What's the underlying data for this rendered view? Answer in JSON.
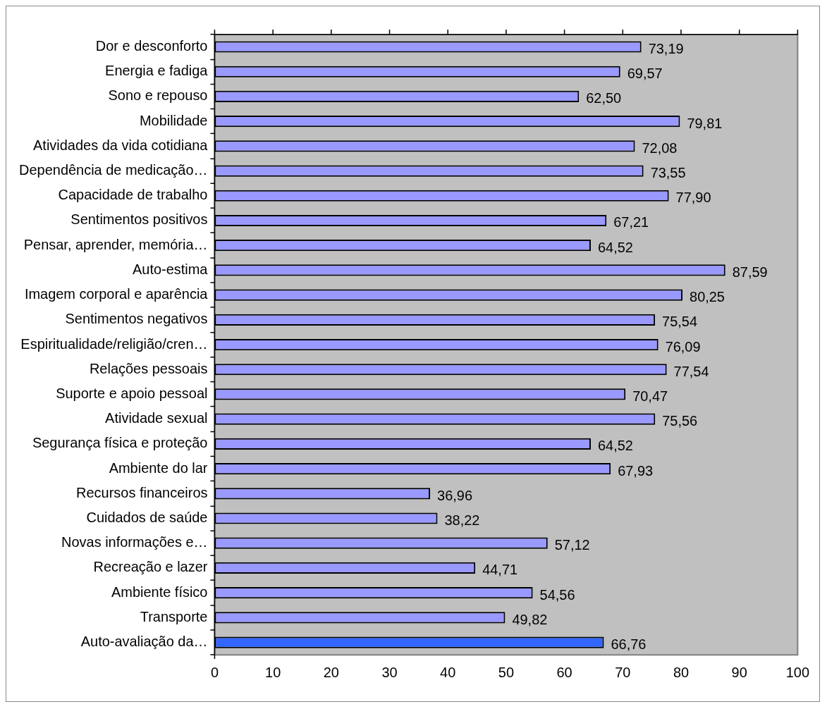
{
  "chart_data": {
    "type": "bar",
    "orientation": "horizontal",
    "categories": [
      "Dor e desconforto",
      "Energia e fadiga",
      "Sono e repouso",
      "Mobilidade",
      "Atividades da vida cotidiana",
      "Dependência de medicação…",
      "Capacidade de trabalho",
      "Sentimentos positivos",
      "Pensar, aprender, memória…",
      "Auto-estima",
      "Imagem corporal e aparência",
      "Sentimentos negativos",
      "Espiritualidade/religião/cren…",
      "Relações pessoais",
      "Suporte e apoio pessoal",
      "Atividade sexual",
      "Segurança física e proteção",
      "Ambiente do lar",
      "Recursos financeiros",
      "Cuidados de saúde",
      "Novas informações e…",
      "Recreação e lazer",
      "Ambiente físico",
      "Transporte",
      "Auto-avaliação da…"
    ],
    "values": [
      73.19,
      69.57,
      62.5,
      79.81,
      72.08,
      73.55,
      77.9,
      67.21,
      64.52,
      87.59,
      80.25,
      75.54,
      76.09,
      77.54,
      70.47,
      75.56,
      64.52,
      67.93,
      36.96,
      38.22,
      57.12,
      44.71,
      54.56,
      49.82,
      66.76
    ],
    "value_labels": [
      "73,19",
      "69,57",
      "62,50",
      "79,81",
      "72,08",
      "73,55",
      "77,90",
      "67,21",
      "64,52",
      "87,59",
      "80,25",
      "75,54",
      "76,09",
      "77,54",
      "70,47",
      "75,56",
      "64,52",
      "67,93",
      "36,96",
      "38,22",
      "57,12",
      "44,71",
      "54,56",
      "49,82",
      "66,76"
    ],
    "colors": [
      "#9999ff",
      "#9999ff",
      "#9999ff",
      "#9999ff",
      "#9999ff",
      "#9999ff",
      "#9999ff",
      "#9999ff",
      "#9999ff",
      "#9999ff",
      "#9999ff",
      "#9999ff",
      "#9999ff",
      "#9999ff",
      "#9999ff",
      "#9999ff",
      "#9999ff",
      "#9999ff",
      "#9999ff",
      "#9999ff",
      "#9999ff",
      "#9999ff",
      "#9999ff",
      "#9999ff",
      "#3366ff"
    ],
    "xlim": [
      0,
      100
    ],
    "xticks": [
      0,
      10,
      20,
      30,
      40,
      50,
      60,
      70,
      80,
      90,
      100
    ],
    "grid": false,
    "legend": false
  }
}
